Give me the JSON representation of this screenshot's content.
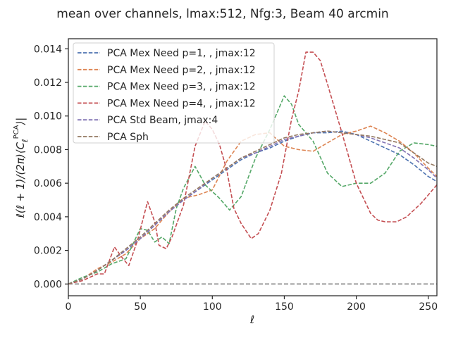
{
  "chart_data": {
    "type": "line",
    "title": "mean over channels, lmax:512, Nfg:3, Beam 40 arcmin",
    "xlabel": "ℓ",
    "ylabel": "ℓ(ℓ + 1)/(2π)⟨C_ℓ^PCA⟩|",
    "xlim": [
      0,
      256
    ],
    "ylim": [
      -0.0007,
      0.0146
    ],
    "xticks": [
      0,
      50,
      100,
      150,
      200,
      250
    ],
    "yticks": [
      0.0,
      0.002,
      0.004,
      0.006,
      0.008,
      0.01,
      0.012,
      0.014
    ],
    "ytick_labels": [
      "0.000",
      "0.002",
      "0.004",
      "0.006",
      "0.008",
      "0.010",
      "0.012",
      "0.014"
    ],
    "legend_position": "upper-left",
    "grid": false,
    "baseline": {
      "y": 0.0,
      "color": "#808080"
    },
    "series": [
      {
        "name": "PCA Mex Need p=1, , jmax:12",
        "color": "#4c72b0",
        "x": [
          0,
          10,
          20,
          30,
          40,
          50,
          60,
          70,
          80,
          90,
          100,
          110,
          120,
          130,
          140,
          150,
          160,
          170,
          180,
          190,
          200,
          210,
          220,
          230,
          240,
          250,
          256
        ],
        "y": [
          0.0,
          0.0003,
          0.0008,
          0.0014,
          0.002,
          0.0027,
          0.0035,
          0.0043,
          0.005,
          0.0056,
          0.0062,
          0.0068,
          0.0074,
          0.0078,
          0.0081,
          0.0085,
          0.0088,
          0.009,
          0.009,
          0.0091,
          0.0089,
          0.0085,
          0.0081,
          0.0077,
          0.0071,
          0.0064,
          0.0061
        ]
      },
      {
        "name": "PCA Mex Need p=2, , jmax:12",
        "color": "#dd8452",
        "x": [
          0,
          10,
          20,
          30,
          40,
          50,
          60,
          70,
          80,
          90,
          100,
          110,
          120,
          130,
          140,
          150,
          160,
          170,
          180,
          190,
          200,
          210,
          220,
          230,
          240,
          250,
          256
        ],
        "y": [
          0.0,
          0.0003,
          0.0009,
          0.0013,
          0.0018,
          0.0027,
          0.0033,
          0.0043,
          0.0051,
          0.0053,
          0.0056,
          0.0073,
          0.0085,
          0.0089,
          0.009,
          0.0082,
          0.008,
          0.0079,
          0.0084,
          0.0089,
          0.0091,
          0.0094,
          0.009,
          0.0085,
          0.0078,
          0.0069,
          0.0064
        ]
      },
      {
        "name": "PCA Mex Need p=3, , jmax:12",
        "color": "#55a868",
        "x": [
          0,
          10,
          20,
          30,
          40,
          50,
          55,
          60,
          65,
          70,
          75,
          80,
          88,
          95,
          105,
          112,
          120,
          130,
          140,
          150,
          155,
          160,
          170,
          180,
          190,
          200,
          210,
          220,
          230,
          240,
          250,
          256
        ],
        "y": [
          0.0,
          0.0004,
          0.0007,
          0.0012,
          0.0015,
          0.0033,
          0.0032,
          0.0025,
          0.0028,
          0.0024,
          0.0045,
          0.0057,
          0.007,
          0.0059,
          0.0051,
          0.0044,
          0.0052,
          0.0075,
          0.0092,
          0.0112,
          0.0107,
          0.0095,
          0.0085,
          0.0066,
          0.0058,
          0.006,
          0.006,
          0.0066,
          0.0079,
          0.0084,
          0.0083,
          0.0082
        ]
      },
      {
        "name": "PCA Mex Need p=4, , jmax:12",
        "color": "#c44e52",
        "x": [
          0,
          10,
          20,
          25,
          32,
          38,
          42,
          48,
          55,
          60,
          63,
          68,
          72,
          80,
          88,
          95,
          100,
          105,
          110,
          115,
          120,
          127,
          132,
          140,
          148,
          155,
          160,
          165,
          170,
          175,
          180,
          190,
          200,
          210,
          215,
          220,
          228,
          235,
          245,
          250,
          256
        ],
        "y": [
          0.0,
          0.0002,
          0.0006,
          0.0006,
          0.0022,
          0.0015,
          0.0011,
          0.0026,
          0.0049,
          0.0037,
          0.0023,
          0.0021,
          0.0028,
          0.0047,
          0.0082,
          0.0097,
          0.0092,
          0.0083,
          0.0068,
          0.0045,
          0.0036,
          0.0027,
          0.003,
          0.0044,
          0.0066,
          0.0098,
          0.0115,
          0.0138,
          0.0138,
          0.0133,
          0.0119,
          0.009,
          0.006,
          0.0042,
          0.0038,
          0.0037,
          0.0037,
          0.004,
          0.0048,
          0.0053,
          0.0059
        ]
      },
      {
        "name": "PCA Std Beam, jmax:4",
        "color": "#8172b3",
        "x": [
          0,
          10,
          20,
          30,
          40,
          50,
          60,
          70,
          80,
          90,
          100,
          110,
          120,
          130,
          140,
          150,
          160,
          170,
          180,
          190,
          200,
          210,
          220,
          230,
          240,
          250,
          256
        ],
        "y": [
          0.0,
          0.0003,
          0.0008,
          0.0014,
          0.002,
          0.0027,
          0.0035,
          0.0043,
          0.005,
          0.0056,
          0.0063,
          0.0069,
          0.0075,
          0.0078,
          0.0082,
          0.0086,
          0.0088,
          0.009,
          0.0091,
          0.009,
          0.0089,
          0.0087,
          0.0084,
          0.0081,
          0.0075,
          0.0068,
          0.0063
        ]
      },
      {
        "name": "PCA Sph",
        "color": "#937860",
        "x": [
          0,
          10,
          20,
          30,
          40,
          50,
          60,
          70,
          80,
          90,
          100,
          110,
          120,
          130,
          140,
          150,
          160,
          170,
          180,
          190,
          200,
          210,
          220,
          230,
          240,
          250,
          256
        ],
        "y": [
          0.0,
          0.0003,
          0.0008,
          0.0014,
          0.0021,
          0.0028,
          0.0036,
          0.0044,
          0.0051,
          0.0057,
          0.0063,
          0.0069,
          0.0075,
          0.0079,
          0.0083,
          0.0087,
          0.0089,
          0.009,
          0.0091,
          0.009,
          0.0089,
          0.0088,
          0.0086,
          0.0084,
          0.0078,
          0.0072,
          0.007
        ]
      }
    ]
  }
}
